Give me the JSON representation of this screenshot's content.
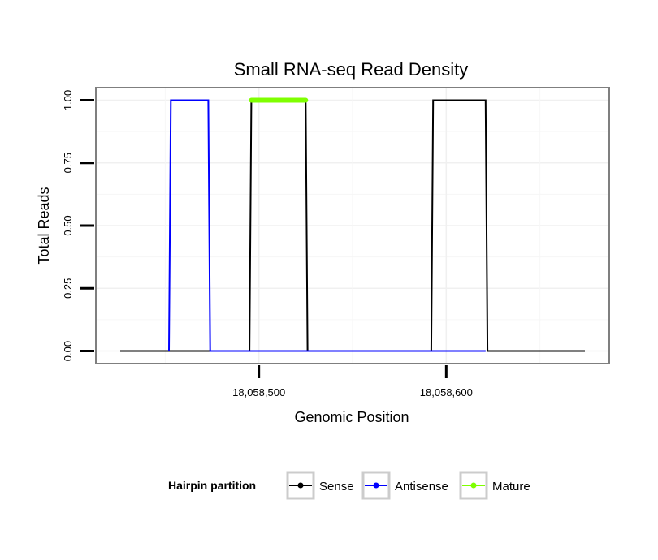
{
  "chart_data": {
    "type": "line",
    "title": "Small RNA-seq Read Density",
    "xlabel": "Genomic Position",
    "ylabel": "Total Reads",
    "xlim": [
      18058413,
      18058687
    ],
    "ylim": [
      -0.05,
      1.05
    ],
    "x_ticks": [
      {
        "value": 18058500,
        "label": "18,058,500"
      },
      {
        "value": 18058600,
        "label": "18,058,600"
      }
    ],
    "y_ticks": [
      {
        "value": 0,
        "label": "0.00"
      },
      {
        "value": 0.25,
        "label": "0.25"
      },
      {
        "value": 0.5,
        "label": "0.50"
      },
      {
        "value": 0.75,
        "label": "0.75"
      },
      {
        "value": 1,
        "label": "1.00"
      }
    ],
    "grid": true,
    "series": [
      {
        "name": "Sense",
        "color": "#000000",
        "x": [
          18058426,
          18058495,
          18058496,
          18058525,
          18058526,
          18058592,
          18058593,
          18058621,
          18058622,
          18058674
        ],
        "y": [
          0,
          0,
          1,
          1,
          0,
          0,
          1,
          1,
          0,
          0
        ]
      },
      {
        "name": "Antisense",
        "color": "#0000ff",
        "x": [
          18058452,
          18058453,
          18058473,
          18058474,
          18058495,
          18058525,
          18058592,
          18058621
        ],
        "y": [
          0,
          1,
          1,
          0,
          0,
          0,
          0,
          0
        ]
      },
      {
        "name": "Mature",
        "color": "#7fff00",
        "x": [
          18058496,
          18058525
        ],
        "y": [
          1,
          1
        ]
      }
    ],
    "legend": {
      "title": "Hairpin partition",
      "position": "bottom",
      "entries": [
        {
          "label": "Sense",
          "color": "#000000"
        },
        {
          "label": "Antisense",
          "color": "#0000ff"
        },
        {
          "label": "Mature",
          "color": "#7fff00"
        }
      ]
    }
  }
}
